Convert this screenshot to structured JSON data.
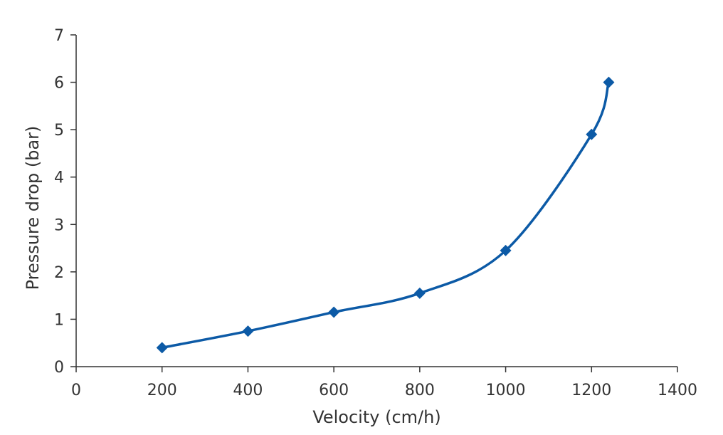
{
  "chart_data": {
    "type": "line",
    "title": "",
    "xlabel": "Velocity (cm/h)",
    "ylabel": "Pressure drop (bar)",
    "xlim": [
      0,
      1400
    ],
    "ylim": [
      0,
      7
    ],
    "x_ticks": [
      0,
      200,
      400,
      600,
      800,
      1000,
      1200,
      1400
    ],
    "y_ticks": [
      0,
      1,
      2,
      3,
      4,
      5,
      6,
      7
    ],
    "grid": false,
    "legend": "none",
    "series": [
      {
        "color": "#0c5aa6",
        "marker": "diamond",
        "smooth": true,
        "x": [
          200,
          400,
          600,
          800,
          1000,
          1200,
          1240
        ],
        "y": [
          0.4,
          0.75,
          1.15,
          1.55,
          2.45,
          4.9,
          6.0
        ]
      }
    ]
  }
}
